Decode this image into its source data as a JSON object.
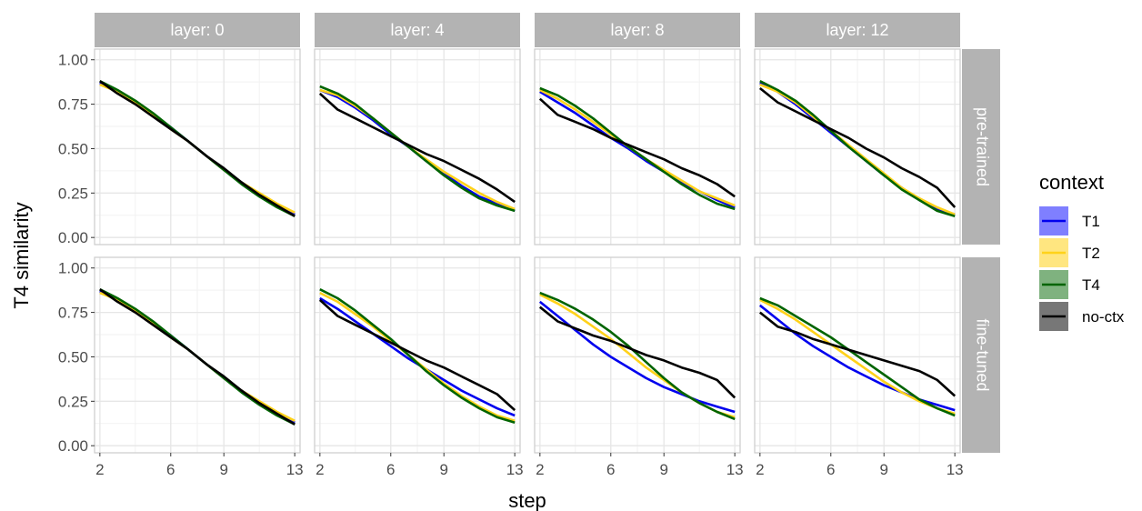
{
  "chart_data": {
    "type": "line",
    "xlabel": "step",
    "ylabel": "T4 similarity",
    "xlim": [
      1.7,
      13.3
    ],
    "ylim": [
      -0.04,
      1.06
    ],
    "x_ticks": [
      2,
      6,
      9,
      13
    ],
    "y_ticks": [
      0.0,
      0.25,
      0.5,
      0.75,
      1.0
    ],
    "x_tick_labels": [
      "2",
      "6",
      "9",
      "13"
    ],
    "y_tick_labels": [
      "0.00",
      "0.25",
      "0.50",
      "0.75",
      "1.00"
    ],
    "grid": true,
    "legend": {
      "title": "context",
      "placement": "right",
      "entries": [
        {
          "name": "T1",
          "color": "#0000ee",
          "fill": "#7f7fff"
        },
        {
          "name": "T2",
          "color": "#ffd21a",
          "fill": "#ffe680"
        },
        {
          "name": "T4",
          "color": "#006400",
          "fill": "#7fb27f"
        },
        {
          "name": "no-ctx",
          "color": "#000000",
          "fill": "#777777"
        }
      ]
    },
    "col_facets": [
      "layer: 0",
      "layer: 4",
      "layer: 8",
      "layer: 12"
    ],
    "row_facets": [
      "pre-trained",
      "fine-tuned"
    ],
    "x": [
      2,
      3,
      4,
      5,
      6,
      7,
      8,
      9,
      10,
      11,
      12,
      13
    ],
    "panels": [
      {
        "row": "pre-trained",
        "col": "layer: 0",
        "series": [
          {
            "name": "T1",
            "values": [
              0.87,
              0.82,
              0.76,
              0.69,
              0.62,
              0.54,
              0.46,
              0.38,
              0.31,
              0.24,
              0.18,
              0.13
            ]
          },
          {
            "name": "T2",
            "values": [
              0.86,
              0.82,
              0.76,
              0.69,
              0.61,
              0.54,
              0.46,
              0.38,
              0.31,
              0.25,
              0.19,
              0.14
            ]
          },
          {
            "name": "T4",
            "values": [
              0.88,
              0.83,
              0.77,
              0.7,
              0.62,
              0.54,
              0.46,
              0.38,
              0.3,
              0.23,
              0.17,
              0.12
            ]
          },
          {
            "name": "no-ctx",
            "values": [
              0.88,
              0.81,
              0.75,
              0.68,
              0.61,
              0.54,
              0.46,
              0.39,
              0.31,
              0.24,
              0.18,
              0.12
            ]
          }
        ]
      },
      {
        "row": "pre-trained",
        "col": "layer: 4",
        "series": [
          {
            "name": "T1",
            "values": [
              0.83,
              0.79,
              0.73,
              0.66,
              0.58,
              0.51,
              0.43,
              0.36,
              0.29,
              0.23,
              0.19,
              0.15
            ]
          },
          {
            "name": "T2",
            "values": [
              0.83,
              0.8,
              0.74,
              0.67,
              0.59,
              0.51,
              0.44,
              0.37,
              0.31,
              0.25,
              0.2,
              0.16
            ]
          },
          {
            "name": "T4",
            "values": [
              0.85,
              0.81,
              0.75,
              0.67,
              0.59,
              0.51,
              0.43,
              0.35,
              0.28,
              0.22,
              0.18,
              0.15
            ]
          },
          {
            "name": "no-ctx",
            "values": [
              0.81,
              0.72,
              0.67,
              0.62,
              0.57,
              0.52,
              0.47,
              0.43,
              0.38,
              0.33,
              0.27,
              0.2
            ]
          }
        ]
      },
      {
        "row": "pre-trained",
        "col": "layer: 8",
        "series": [
          {
            "name": "T1",
            "values": [
              0.82,
              0.76,
              0.7,
              0.63,
              0.56,
              0.5,
              0.43,
              0.37,
              0.31,
              0.26,
              0.21,
              0.17
            ]
          },
          {
            "name": "T2",
            "values": [
              0.83,
              0.78,
              0.72,
              0.65,
              0.58,
              0.51,
              0.44,
              0.38,
              0.32,
              0.26,
              0.22,
              0.18
            ]
          },
          {
            "name": "T4",
            "values": [
              0.84,
              0.8,
              0.74,
              0.67,
              0.59,
              0.51,
              0.44,
              0.37,
              0.3,
              0.24,
              0.19,
              0.16
            ]
          },
          {
            "name": "no-ctx",
            "values": [
              0.78,
              0.69,
              0.65,
              0.61,
              0.56,
              0.52,
              0.48,
              0.44,
              0.39,
              0.35,
              0.3,
              0.23
            ]
          }
        ]
      },
      {
        "row": "pre-trained",
        "col": "layer: 12",
        "series": [
          {
            "name": "T1",
            "values": [
              0.87,
              0.82,
              0.75,
              0.67,
              0.59,
              0.51,
              0.43,
              0.35,
              0.28,
              0.21,
              0.16,
              0.13
            ]
          },
          {
            "name": "T2",
            "values": [
              0.86,
              0.82,
              0.76,
              0.68,
              0.6,
              0.52,
              0.44,
              0.36,
              0.28,
              0.22,
              0.17,
              0.13
            ]
          },
          {
            "name": "T4",
            "values": [
              0.88,
              0.83,
              0.77,
              0.69,
              0.6,
              0.51,
              0.43,
              0.35,
              0.27,
              0.21,
              0.15,
              0.12
            ]
          },
          {
            "name": "no-ctx",
            "values": [
              0.84,
              0.76,
              0.71,
              0.66,
              0.61,
              0.56,
              0.5,
              0.45,
              0.39,
              0.34,
              0.28,
              0.17
            ]
          }
        ]
      },
      {
        "row": "fine-tuned",
        "col": "layer: 0",
        "series": [
          {
            "name": "T1",
            "values": [
              0.87,
              0.82,
              0.76,
              0.69,
              0.62,
              0.54,
              0.46,
              0.38,
              0.31,
              0.24,
              0.18,
              0.13
            ]
          },
          {
            "name": "T2",
            "values": [
              0.86,
              0.82,
              0.76,
              0.69,
              0.61,
              0.54,
              0.46,
              0.38,
              0.31,
              0.25,
              0.19,
              0.14
            ]
          },
          {
            "name": "T4",
            "values": [
              0.88,
              0.83,
              0.77,
              0.7,
              0.62,
              0.54,
              0.46,
              0.38,
              0.3,
              0.23,
              0.17,
              0.12
            ]
          },
          {
            "name": "no-ctx",
            "values": [
              0.88,
              0.81,
              0.75,
              0.68,
              0.61,
              0.54,
              0.46,
              0.39,
              0.31,
              0.24,
              0.18,
              0.12
            ]
          }
        ]
      },
      {
        "row": "fine-tuned",
        "col": "layer: 4",
        "series": [
          {
            "name": "T1",
            "values": [
              0.83,
              0.77,
              0.7,
              0.63,
              0.56,
              0.49,
              0.43,
              0.37,
              0.31,
              0.26,
              0.21,
              0.17
            ]
          },
          {
            "name": "T2",
            "values": [
              0.86,
              0.81,
              0.74,
              0.67,
              0.59,
              0.51,
              0.43,
              0.35,
              0.28,
              0.22,
              0.17,
              0.14
            ]
          },
          {
            "name": "T4",
            "values": [
              0.88,
              0.83,
              0.76,
              0.68,
              0.6,
              0.51,
              0.42,
              0.34,
              0.27,
              0.21,
              0.16,
              0.13
            ]
          },
          {
            "name": "no-ctx",
            "values": [
              0.82,
              0.73,
              0.68,
              0.63,
              0.58,
              0.53,
              0.48,
              0.44,
              0.39,
              0.34,
              0.29,
              0.2
            ]
          }
        ]
      },
      {
        "row": "fine-tuned",
        "col": "layer: 8",
        "series": [
          {
            "name": "T1",
            "values": [
              0.81,
              0.73,
              0.65,
              0.57,
              0.5,
              0.44,
              0.38,
              0.33,
              0.29,
              0.25,
              0.22,
              0.19
            ]
          },
          {
            "name": "T2",
            "values": [
              0.85,
              0.8,
              0.74,
              0.67,
              0.6,
              0.52,
              0.44,
              0.37,
              0.3,
              0.24,
              0.19,
              0.16
            ]
          },
          {
            "name": "T4",
            "values": [
              0.86,
              0.82,
              0.77,
              0.71,
              0.64,
              0.56,
              0.47,
              0.38,
              0.3,
              0.24,
              0.19,
              0.15
            ]
          },
          {
            "name": "no-ctx",
            "values": [
              0.78,
              0.7,
              0.66,
              0.62,
              0.59,
              0.55,
              0.51,
              0.48,
              0.44,
              0.41,
              0.37,
              0.27
            ]
          }
        ]
      },
      {
        "row": "fine-tuned",
        "col": "layer: 12",
        "series": [
          {
            "name": "T1",
            "values": [
              0.79,
              0.71,
              0.63,
              0.56,
              0.5,
              0.44,
              0.39,
              0.34,
              0.3,
              0.26,
              0.23,
              0.2
            ]
          },
          {
            "name": "T2",
            "values": [
              0.82,
              0.77,
              0.71,
              0.64,
              0.57,
              0.5,
              0.43,
              0.36,
              0.3,
              0.25,
              0.21,
              0.18
            ]
          },
          {
            "name": "T4",
            "values": [
              0.83,
              0.79,
              0.73,
              0.67,
              0.61,
              0.54,
              0.47,
              0.4,
              0.33,
              0.26,
              0.21,
              0.17
            ]
          },
          {
            "name": "no-ctx",
            "values": [
              0.75,
              0.67,
              0.64,
              0.6,
              0.57,
              0.54,
              0.51,
              0.48,
              0.45,
              0.42,
              0.37,
              0.28
            ]
          }
        ]
      }
    ]
  }
}
